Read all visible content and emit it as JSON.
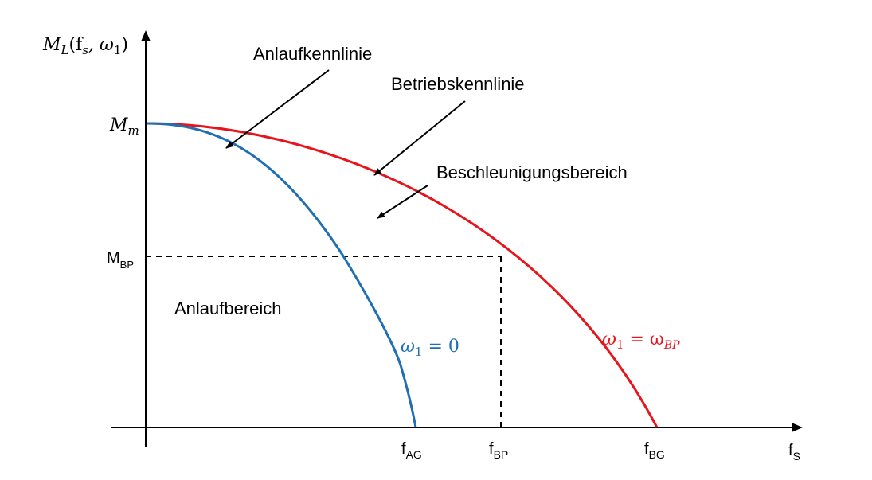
{
  "axes": {
    "y_label_main": "M",
    "y_label_sub": "L",
    "y_label_args": "(f",
    "y_label_args_sub": "s",
    "y_label_args_rest": ", ω",
    "y_label_args_sub2": "1",
    "y_label_close": ")",
    "x_label_main": "f",
    "x_label_sub": "S"
  },
  "y_ticks": {
    "mm_main": "M",
    "mm_sub": "m",
    "mbp_main": "M",
    "mbp_sub": "BP"
  },
  "x_ticks": [
    {
      "main": "f",
      "sub": "AG"
    },
    {
      "main": "f",
      "sub": "BP"
    },
    {
      "main": "f",
      "sub": "BG"
    }
  ],
  "annotations": {
    "anlaufkennlinie": "Anlaufkennlinie",
    "betriebskennlinie": "Betriebskennlinie",
    "beschleunigungsbereich": "Beschleunigungsbereich",
    "anlaufbereich": "Anlaufbereich"
  },
  "curves": {
    "start": {
      "label_var": "ω",
      "label_sub": "1",
      "label_rest": " = 0",
      "color": "#1f6fb5"
    },
    "operating": {
      "label_var": "ω",
      "label_sub": "1",
      "label_eq": " = ω",
      "label_sub2": "BP",
      "color": "#e8141b"
    }
  }
}
